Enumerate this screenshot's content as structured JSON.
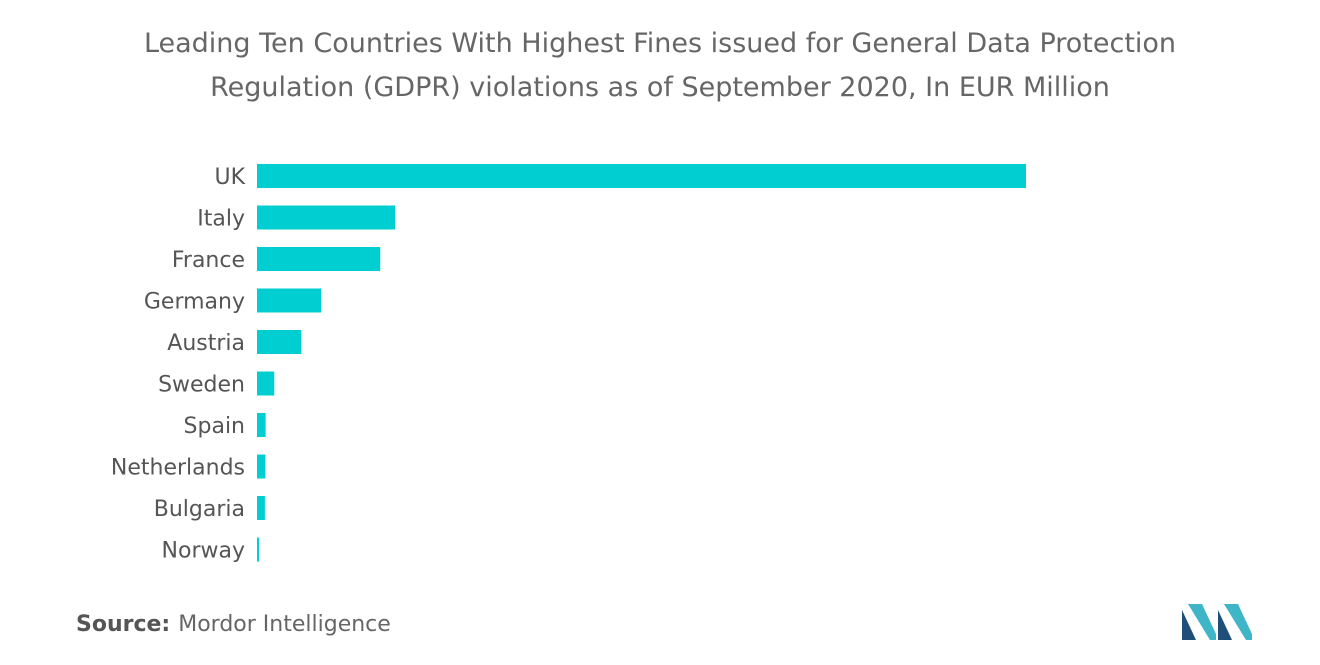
{
  "title": {
    "line1": "Leading Ten Countries With Highest Fines issued for General Data Protection",
    "line2": "Regulation (GDPR) violations as of September 2020, In EUR Million"
  },
  "source": {
    "label": "Source:",
    "value": "Mordor Intelligence"
  },
  "colors": {
    "bar": "#00CED1",
    "text": "#555555",
    "logo_dark": "#1F4E79",
    "logo_light": "#3FB6C8"
  },
  "chart_data": {
    "type": "bar",
    "orientation": "horizontal",
    "title": "Leading Ten Countries With Highest Fines issued for General Data Protection Regulation (GDPR) violations as of September 2020, In EUR Million",
    "categories": [
      "UK",
      "Italy",
      "France",
      "Germany",
      "Austria",
      "Sweden",
      "Spain",
      "Netherlands",
      "Bulgaria",
      "Norway"
    ],
    "values": [
      312,
      56,
      50,
      26,
      18,
      7,
      3.5,
      3.4,
      3.2,
      0.7
    ],
    "xlim": [
      0,
      312
    ],
    "grid": false,
    "legend": "none"
  }
}
